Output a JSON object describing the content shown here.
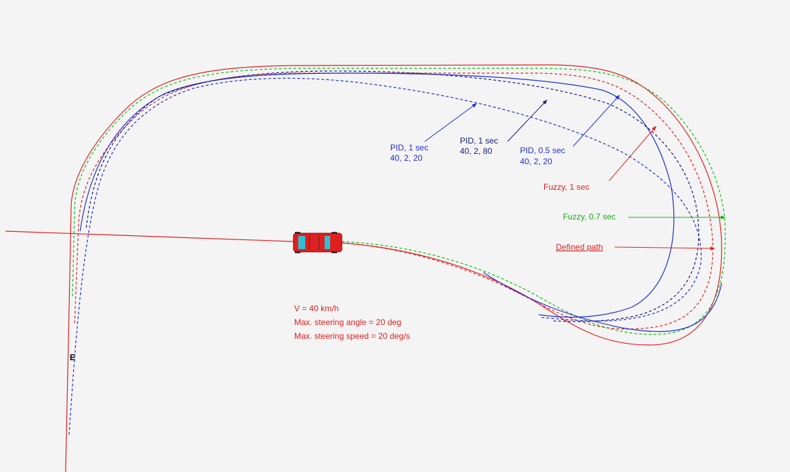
{
  "annotations": {
    "pid_a": {
      "title": "PID, 1 sec",
      "params": "40, 2, 20"
    },
    "pid_b": {
      "title": "PID, 1 sec",
      "params": "40, 2, 80"
    },
    "pid_c": {
      "title": "PID, 0.5 sec",
      "params": "40, 2, 20"
    },
    "fuzzy_1": "Fuzzy, 1 sec",
    "fuzzy_07": "Fuzzy, 0.7 sec",
    "defined_path": "Defined path"
  },
  "conditions": [
    "V = 40 km/h",
    "Max. steering angle = 20 deg",
    "Max. steering speed = 20 deg/s"
  ],
  "end_marker": "E"
}
